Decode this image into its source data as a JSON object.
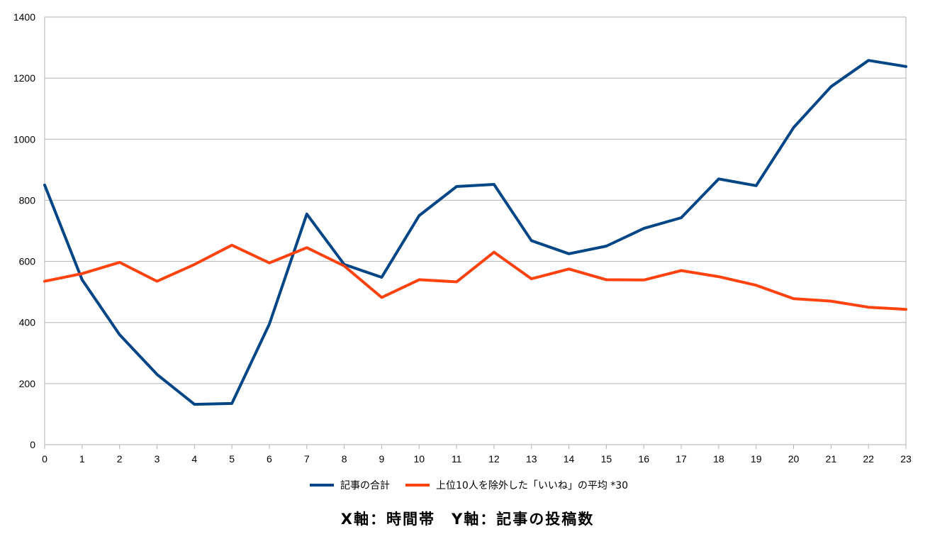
{
  "chart_data": {
    "type": "line",
    "x": [
      0,
      1,
      2,
      3,
      4,
      5,
      6,
      7,
      8,
      9,
      10,
      11,
      12,
      13,
      14,
      15,
      16,
      17,
      18,
      19,
      20,
      21,
      22,
      23
    ],
    "ylim": [
      0,
      1400
    ],
    "yticks": [
      0,
      200,
      400,
      600,
      800,
      1000,
      1200,
      1400
    ],
    "grid": true,
    "legend_position": "bottom",
    "series": [
      {
        "name": "記事の合計",
        "color": "#004586",
        "values": [
          850,
          540,
          360,
          230,
          132,
          135,
          395,
          755,
          590,
          548,
          750,
          845,
          852,
          668,
          625,
          650,
          708,
          743,
          870,
          848,
          1038,
          1172,
          1258,
          1238
        ]
      },
      {
        "name": "上位10人を除外した「いいね」の平均 *30",
        "color": "#ff420e",
        "values": [
          535,
          560,
          597,
          535,
          590,
          653,
          595,
          645,
          585,
          482,
          540,
          533,
          630,
          543,
          575,
          540,
          539,
          570,
          550,
          522,
          478,
          470,
          450,
          443
        ]
      }
    ],
    "caption": "X軸：時間帯　Y軸：記事の投稿数"
  }
}
